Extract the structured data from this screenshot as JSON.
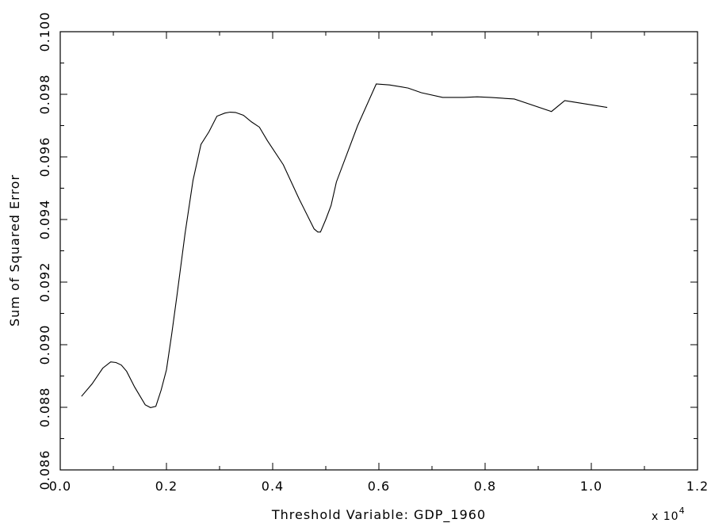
{
  "chart_data": {
    "type": "line",
    "title": "",
    "xlabel": "Threshold Variable: GDP_1960",
    "ylabel": "Sum of Squared Error",
    "x_multiplier_label": "x 10",
    "x_multiplier_exponent": "4",
    "xlim": [
      0.0,
      1.2
    ],
    "ylim": [
      0.086,
      0.1
    ],
    "x_ticks": [
      0.0,
      0.2,
      0.4,
      0.6,
      0.8,
      1.0,
      1.2
    ],
    "x_tick_labels": [
      "0.0",
      "0.2",
      "0.4",
      "0.6",
      "0.8",
      "1.0",
      "1.2"
    ],
    "x_minor_ticks": [
      0.1,
      0.3,
      0.5,
      0.7,
      0.9,
      1.1
    ],
    "y_ticks": [
      0.086,
      0.088,
      0.09,
      0.092,
      0.094,
      0.096,
      0.098,
      0.1
    ],
    "y_tick_labels": [
      "0.086",
      "0.088",
      "0.090",
      "0.092",
      "0.094",
      "0.096",
      "0.098",
      "0.100"
    ],
    "y_minor_ticks": [
      0.087,
      0.089,
      0.091,
      0.093,
      0.095,
      0.097,
      0.099
    ],
    "grid": false,
    "series": [
      {
        "x": [
          0.04,
          0.06,
          0.08,
          0.095,
          0.105,
          0.115,
          0.125,
          0.14,
          0.16,
          0.17,
          0.18,
          0.19,
          0.2,
          0.21,
          0.22,
          0.235,
          0.25,
          0.265,
          0.28,
          0.295,
          0.31,
          0.32,
          0.33,
          0.345,
          0.36,
          0.375,
          0.39,
          0.42,
          0.45,
          0.478,
          0.485,
          0.49,
          0.5,
          0.51,
          0.52,
          0.54,
          0.56,
          0.595,
          0.62,
          0.655,
          0.68,
          0.72,
          0.76,
          0.785,
          0.81,
          0.855,
          0.925,
          0.95,
          1.03
        ],
        "y": [
          0.08835,
          0.08875,
          0.08925,
          0.08945,
          0.08943,
          0.08935,
          0.08915,
          0.08865,
          0.08808,
          0.08799,
          0.08803,
          0.08855,
          0.0892,
          0.09035,
          0.0916,
          0.09355,
          0.09525,
          0.0964,
          0.0968,
          0.0973,
          0.0974,
          0.09743,
          0.09742,
          0.09733,
          0.09712,
          0.09695,
          0.09652,
          0.09575,
          0.09465,
          0.0937,
          0.0936,
          0.0936,
          0.094,
          0.09445,
          0.0952,
          0.0961,
          0.097,
          0.09833,
          0.0983,
          0.0982,
          0.09805,
          0.0979,
          0.0979,
          0.09792,
          0.0979,
          0.09785,
          0.09745,
          0.0978,
          0.09758
        ]
      }
    ]
  }
}
